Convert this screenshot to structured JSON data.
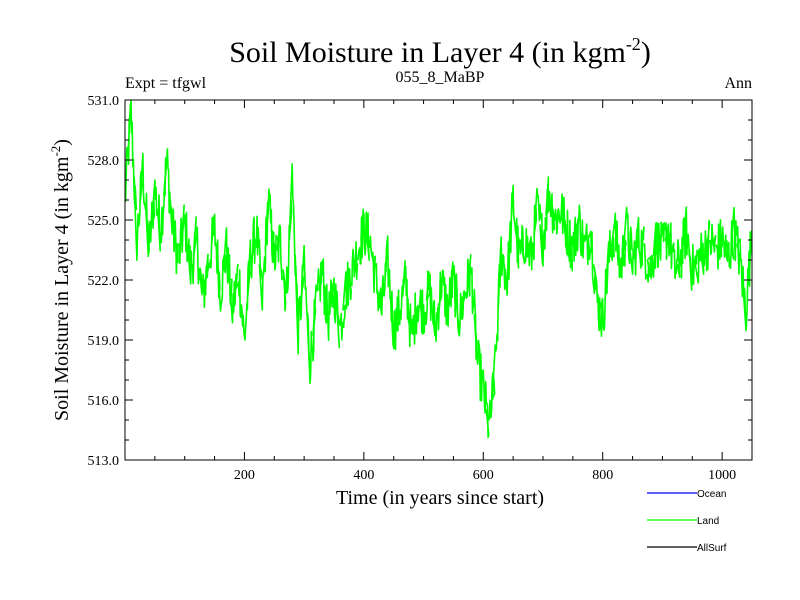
{
  "chart_data": {
    "type": "line",
    "title": "Soil Moisture in Layer 4 (in kgm",
    "title_sup": "-2",
    "title_tail": ")",
    "subtitle_left": "Expt = tfgwl",
    "subtitle_center": "055_8_MaBP",
    "subtitle_right": "Ann",
    "xlabel": "Time (in years since start)",
    "ylabel": "Soil Moisture in Layer 4 (in kgm",
    "ylabel_sup": "-2",
    "ylabel_tail": ")",
    "xlim": [
      0,
      1050
    ],
    "ylim": [
      513.0,
      531.0
    ],
    "xticks": [
      200,
      400,
      600,
      800,
      1000
    ],
    "yticks": [
      513.0,
      516.0,
      519.0,
      522.0,
      525.0,
      528.0,
      531.0
    ],
    "ytick_labels": [
      "513.0",
      "516.0",
      "519.0",
      "522.0",
      "525.0",
      "528.0",
      "531.0"
    ],
    "legend": [
      {
        "name": "Ocean",
        "color": "#0000ff"
      },
      {
        "name": "Land",
        "color": "#00ff00"
      },
      {
        "name": "AllSurf",
        "color": "#000000"
      }
    ],
    "series": [
      {
        "name": "Land",
        "color": "#00ff00",
        "x": [
          0,
          10,
          20,
          30,
          40,
          50,
          60,
          70,
          80,
          90,
          100,
          110,
          120,
          130,
          140,
          150,
          160,
          170,
          180,
          190,
          200,
          210,
          220,
          230,
          240,
          250,
          260,
          270,
          280,
          290,
          300,
          310,
          320,
          330,
          340,
          350,
          360,
          370,
          380,
          390,
          400,
          410,
          420,
          430,
          440,
          450,
          460,
          470,
          480,
          490,
          500,
          510,
          520,
          530,
          540,
          550,
          560,
          570,
          580,
          590,
          600,
          610,
          620,
          630,
          640,
          650,
          660,
          670,
          680,
          690,
          700,
          710,
          720,
          730,
          740,
          750,
          760,
          770,
          780,
          790,
          800,
          810,
          820,
          830,
          840,
          850,
          860,
          870,
          880,
          890,
          900,
          910,
          920,
          930,
          940,
          950,
          960,
          970,
          980,
          990,
          1000,
          1010,
          1020,
          1030,
          1040,
          1050
        ],
        "values": [
          526.0,
          530.4,
          524.0,
          527.5,
          523.5,
          526.5,
          524.5,
          528.0,
          524.5,
          523.0,
          525.0,
          522.5,
          524.0,
          521.0,
          523.0,
          524.5,
          521.5,
          523.5,
          520.5,
          522.5,
          519.0,
          523.0,
          524.5,
          521.0,
          526.0,
          523.0,
          524.0,
          521.0,
          527.0,
          519.5,
          522.5,
          518.0,
          520.5,
          522.5,
          520.0,
          521.5,
          519.5,
          521.5,
          522.5,
          523.5,
          524.5,
          524.0,
          522.0,
          520.5,
          523.0,
          519.5,
          520.5,
          522.0,
          519.0,
          521.0,
          520.5,
          521.5,
          519.5,
          522.0,
          520.5,
          522.0,
          520.0,
          521.5,
          522.5,
          518.0,
          516.5,
          514.5,
          517.5,
          523.5,
          522.0,
          526.0,
          523.0,
          524.0,
          523.0,
          525.5,
          524.0,
          526.5,
          525.0,
          525.5,
          524.5,
          523.5,
          525.0,
          523.5,
          524.5,
          521.0,
          520.0,
          523.0,
          524.5,
          522.5,
          524.5,
          523.0,
          524.0,
          523.5,
          522.5,
          524.0,
          523.5,
          524.5,
          522.5,
          523.0,
          524.5,
          522.5,
          523.0,
          523.5,
          524.0,
          523.5,
          524.0,
          523.0,
          524.5,
          523.0,
          520.5,
          524.5
        ]
      }
    ]
  }
}
